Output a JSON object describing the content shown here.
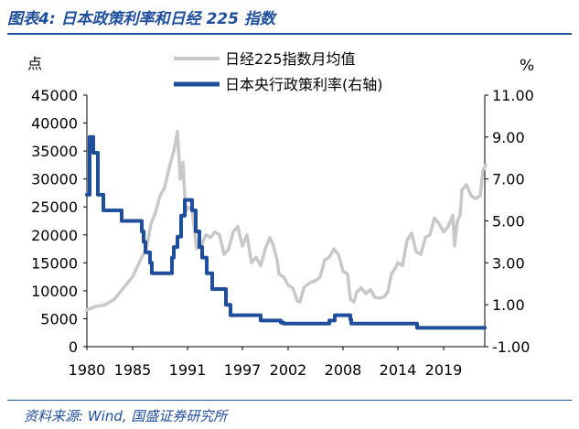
{
  "figure": {
    "title": "图表4:  日本政策利率和日经 225 指数",
    "source": "资料来源:  Wind,  国盛证券研究所"
  },
  "chart_data": {
    "type": "line",
    "left_axis_unit": "点",
    "right_axis_unit": "%",
    "legend_position": "top-center",
    "grid": false,
    "x_ticks": [
      "1980",
      "1985",
      "1991",
      "1997",
      "2002",
      "2008",
      "2014",
      "2019"
    ],
    "x_range": [
      1980.0,
      2023.5
    ],
    "y_left": {
      "ticks": [
        "0",
        "5000",
        "10000",
        "15000",
        "20000",
        "25000",
        "30000",
        "35000",
        "40000",
        "45000"
      ],
      "ylim": [
        0,
        45000
      ]
    },
    "y_right": {
      "ticks": [
        "-1.00",
        "1.00",
        "3.00",
        "5.00",
        "7.00",
        "9.00",
        "11.00"
      ],
      "ylim": [
        -1,
        11
      ]
    },
    "series": [
      {
        "name": "日经225指数月均值",
        "axis": "left",
        "color": "#c8c8c8",
        "x": [
          1980.0,
          1981.0,
          1982.0,
          1983.0,
          1984.0,
          1985.0,
          1986.0,
          1986.5,
          1987.0,
          1987.5,
          1988.0,
          1988.5,
          1989.0,
          1989.5,
          1989.9,
          1990.2,
          1990.5,
          1990.8,
          1991.0,
          1991.5,
          1992.0,
          1992.5,
          1993.0,
          1993.5,
          1994.0,
          1994.5,
          1995.0,
          1995.5,
          1996.0,
          1996.5,
          1997.0,
          1997.5,
          1998.0,
          1998.5,
          1999.0,
          1999.5,
          2000.0,
          2000.3,
          2000.8,
          2001.0,
          2001.5,
          2002.0,
          2002.5,
          2003.0,
          2003.3,
          2003.7,
          2004.0,
          2004.5,
          2005.0,
          2005.5,
          2006.0,
          2006.5,
          2007.0,
          2007.5,
          2008.0,
          2008.5,
          2008.8,
          2009.2,
          2009.5,
          2010.0,
          2010.5,
          2011.0,
          2011.5,
          2012.0,
          2012.5,
          2012.9,
          2013.3,
          2013.7,
          2014.0,
          2014.5,
          2015.0,
          2015.5,
          2016.0,
          2016.5,
          2017.0,
          2017.5,
          2018.0,
          2018.5,
          2019.0,
          2019.5,
          2020.0,
          2020.2,
          2020.5,
          2020.8,
          2021.0,
          2021.5,
          2022.0,
          2022.5,
          2023.0,
          2023.3,
          2023.6
        ],
        "values": [
          6600,
          7200,
          7500,
          8500,
          10500,
          12500,
          16000,
          17500,
          22000,
          24000,
          27000,
          28500,
          32000,
          35000,
          38500,
          30000,
          33000,
          24000,
          25000,
          24500,
          17500,
          18000,
          20000,
          19500,
          20500,
          20000,
          16500,
          17500,
          20500,
          21500,
          18000,
          20000,
          15000,
          16000,
          14500,
          17500,
          19500,
          18500,
          15500,
          13000,
          12500,
          11000,
          10500,
          8200,
          8000,
          10500,
          11000,
          11500,
          11800,
          12500,
          15500,
          16000,
          17500,
          16500,
          13500,
          13000,
          8500,
          8000,
          9800,
          10500,
          9500,
          10200,
          8800,
          8700,
          8900,
          9800,
          13000,
          14000,
          15000,
          14500,
          19000,
          20300,
          17000,
          16500,
          19500,
          20000,
          23000,
          22000,
          20500,
          21500,
          23500,
          18000,
          22500,
          23500,
          28000,
          29000,
          27000,
          26500,
          27000,
          31500,
          32500
        ]
      },
      {
        "name": "日本央行政策利率(右轴)",
        "axis": "right",
        "color": "#1f4e9c",
        "step": true,
        "x": [
          1980.0,
          1980.3,
          1980.7,
          1981.2,
          1981.8,
          1983.8,
          1986.0,
          1986.2,
          1986.4,
          1986.9,
          1987.1,
          1989.3,
          1989.5,
          1989.9,
          1990.3,
          1990.7,
          1991.5,
          1991.9,
          1992.3,
          1992.6,
          1993.1,
          1993.7,
          1995.2,
          1995.7,
          1999.0,
          2001.2,
          2001.5,
          2006.5,
          2007.1,
          2008.8,
          2008.9,
          2010.8,
          2016.1,
          2023.5
        ],
        "values": [
          6.25,
          9.0,
          8.25,
          6.25,
          5.5,
          5.0,
          4.5,
          4.0,
          3.5,
          3.0,
          2.5,
          3.25,
          3.75,
          4.25,
          5.25,
          6.0,
          5.5,
          4.5,
          3.75,
          3.25,
          2.5,
          1.75,
          1.0,
          0.5,
          0.25,
          0.15,
          0.1,
          0.25,
          0.5,
          0.3,
          0.1,
          0.1,
          -0.1,
          -0.1
        ]
      }
    ]
  }
}
